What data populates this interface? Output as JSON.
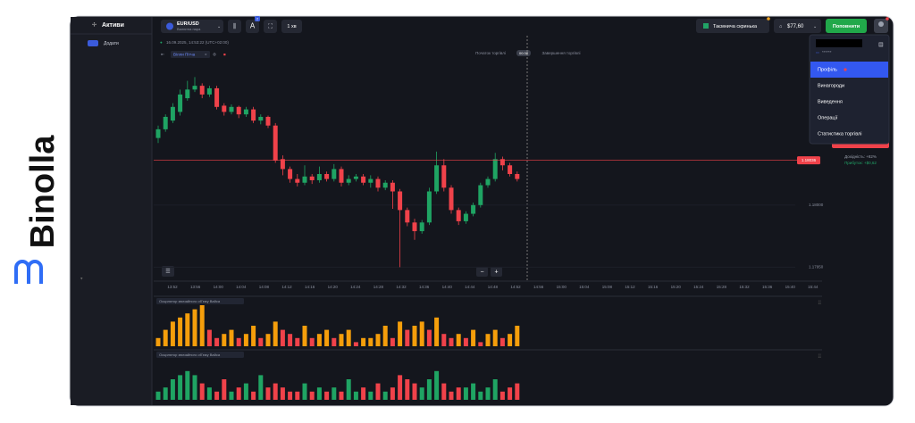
{
  "brand": "Binolla",
  "sidebar": {
    "title": "Активи",
    "add_button": "Додати"
  },
  "topbar": {
    "asset": "EUR/USD",
    "asset_type": "Валютна пара",
    "badge": "2",
    "timeframe": "1 хв",
    "mystery_box": "Таємнича скринька",
    "balance": "$77,60",
    "deposit": "Поповнити"
  },
  "chart": {
    "datetime": "16.09.2025, 14:53:22 (UTC+02:00)",
    "indicator": "Вілли Пітча",
    "trade_start": "Початок торгівлі",
    "timer": "00:38",
    "trade_end": "Завершення торгівлі",
    "ylim": [
      1.17946,
      1.18104
    ],
    "yticks": [
      {
        "value": 1.18,
        "label": "1.18000"
      },
      {
        "value": 1.1795,
        "label": "1.17950"
      }
    ],
    "current_price": 1.18036,
    "candles": [
      [
        1.18054,
        1.18064,
        1.1805,
        1.18061
      ],
      [
        1.18061,
        1.18073,
        1.18059,
        1.18071
      ],
      [
        1.18068,
        1.18082,
        1.18066,
        1.18079
      ],
      [
        1.18075,
        1.18093,
        1.18072,
        1.18089
      ],
      [
        1.18086,
        1.181,
        1.18084,
        1.18093
      ],
      [
        1.18093,
        1.18103,
        1.18091,
        1.18096
      ],
      [
        1.18096,
        1.18098,
        1.18086,
        1.18089
      ],
      [
        1.18089,
        1.18096,
        1.18087,
        1.18094
      ],
      [
        1.18094,
        1.18096,
        1.18077,
        1.18079
      ],
      [
        1.1808,
        1.18082,
        1.18072,
        1.18075
      ],
      [
        1.18075,
        1.18081,
        1.18073,
        1.18079
      ],
      [
        1.18079,
        1.1808,
        1.1807,
        1.18073
      ],
      [
        1.18073,
        1.18079,
        1.18071,
        1.18077
      ],
      [
        1.18077,
        1.18079,
        1.18066,
        1.18068
      ],
      [
        1.18068,
        1.18073,
        1.18065,
        1.18071
      ],
      [
        1.18071,
        1.18072,
        1.18062,
        1.18064
      ],
      [
        1.18064,
        1.18066,
        1.18034,
        1.18036
      ],
      [
        1.18037,
        1.1804,
        1.18024,
        1.18029
      ],
      [
        1.18029,
        1.18031,
        1.18018,
        1.18021
      ],
      [
        1.18021,
        1.18025,
        1.18015,
        1.18018
      ],
      [
        1.18018,
        1.18032,
        1.18016,
        1.18023
      ],
      [
        1.18023,
        1.18025,
        1.18017,
        1.1802
      ],
      [
        1.1802,
        1.18031,
        1.18018,
        1.18025
      ],
      [
        1.18025,
        1.18027,
        1.18019,
        1.18021
      ],
      [
        1.18021,
        1.18033,
        1.18019,
        1.18029
      ],
      [
        1.18029,
        1.18031,
        1.18015,
        1.18018
      ],
      [
        1.18018,
        1.18024,
        1.18016,
        1.18021
      ],
      [
        1.18021,
        1.18025,
        1.18019,
        1.18023
      ],
      [
        1.18023,
        1.18025,
        1.18016,
        1.18018
      ],
      [
        1.18018,
        1.18024,
        1.18014,
        1.18021
      ],
      [
        1.18021,
        1.18023,
        1.18011,
        1.18014
      ],
      [
        1.18014,
        1.1802,
        1.18012,
        1.18018
      ],
      [
        1.18018,
        1.1802,
        1.17997,
        1.18011
      ],
      [
        1.18011,
        1.18013,
        1.1795,
        1.17996
      ],
      [
        1.17996,
        1.17998,
        1.17983,
        1.17986
      ],
      [
        1.17986,
        1.17989,
        1.17972,
        1.17979
      ],
      [
        1.17979,
        1.17988,
        1.17977,
        1.17986
      ],
      [
        1.17986,
        1.18014,
        1.17984,
        1.18011
      ],
      [
        1.18011,
        1.18043,
        1.18009,
        1.18032
      ],
      [
        1.18032,
        1.18037,
        1.18011,
        1.18014
      ],
      [
        1.18014,
        1.18016,
        1.17993,
        1.17996
      ],
      [
        1.17996,
        1.17998,
        1.17984,
        1.17987
      ],
      [
        1.17987,
        1.17995,
        1.17985,
        1.17993
      ],
      [
        1.17993,
        1.18002,
        1.17991,
        1.18
      ],
      [
        1.18,
        1.18018,
        1.17998,
        1.18016
      ],
      [
        1.18016,
        1.18023,
        1.18014,
        1.18021
      ],
      [
        1.18021,
        1.18042,
        1.18019,
        1.18037
      ],
      [
        1.18037,
        1.18039,
        1.18028,
        1.18032
      ],
      [
        1.18032,
        1.18034,
        1.18023,
        1.18025
      ],
      [
        1.18025,
        1.18027,
        1.18019,
        1.18021
      ]
    ],
    "times": [
      "13:52",
      "13:56",
      "14:00",
      "14:04",
      "14:08",
      "14:12",
      "14:16",
      "14:20",
      "14:24",
      "14:28",
      "14:32",
      "14:36",
      "14:40",
      "14:44",
      "14:48",
      "14:52",
      "14:56",
      "15:00",
      "15:04",
      "15:08",
      "15:12",
      "15:16",
      "15:20",
      "15:24",
      "15:28",
      "15:32",
      "15:36",
      "15:40",
      "15:44"
    ]
  },
  "volume_panels": [
    {
      "label": "Осцилятор звичайного обʼєму Вайса",
      "ylim": [
        0,
        10
      ],
      "values": [
        2,
        4,
        6,
        7,
        8,
        9,
        10,
        4,
        2,
        3,
        4,
        2,
        3,
        5,
        2,
        3,
        6,
        4,
        3,
        2,
        5,
        2,
        3,
        4,
        2,
        3,
        4,
        1,
        2,
        2,
        3,
        5,
        2,
        6,
        4,
        5,
        6,
        4,
        7,
        3,
        2,
        3,
        2,
        4,
        1,
        3,
        4,
        2,
        3,
        5
      ]
    },
    {
      "label": "Осцилятор звичайного обʼєму Вайса",
      "ylim": [
        0,
        10
      ],
      "values": [
        2,
        3,
        5,
        6,
        7,
        6,
        4,
        3,
        2,
        5,
        2,
        3,
        4,
        2,
        6,
        3,
        4,
        3,
        2,
        2,
        4,
        2,
        3,
        2,
        3,
        2,
        5,
        2,
        3,
        2,
        4,
        2,
        3,
        6,
        5,
        4,
        3,
        5,
        7,
        4,
        2,
        3,
        3,
        4,
        2,
        3,
        5,
        2,
        3,
        4
      ]
    }
  ],
  "menu": {
    "account_id": "******",
    "items": [
      "Профіль",
      "Винагороди",
      "Виведення",
      "Операції",
      "Статистика торгівлі"
    ]
  },
  "trade_info": {
    "payout": "Дохідність: +82%",
    "profit": "Прибуток: +$0,62"
  }
}
